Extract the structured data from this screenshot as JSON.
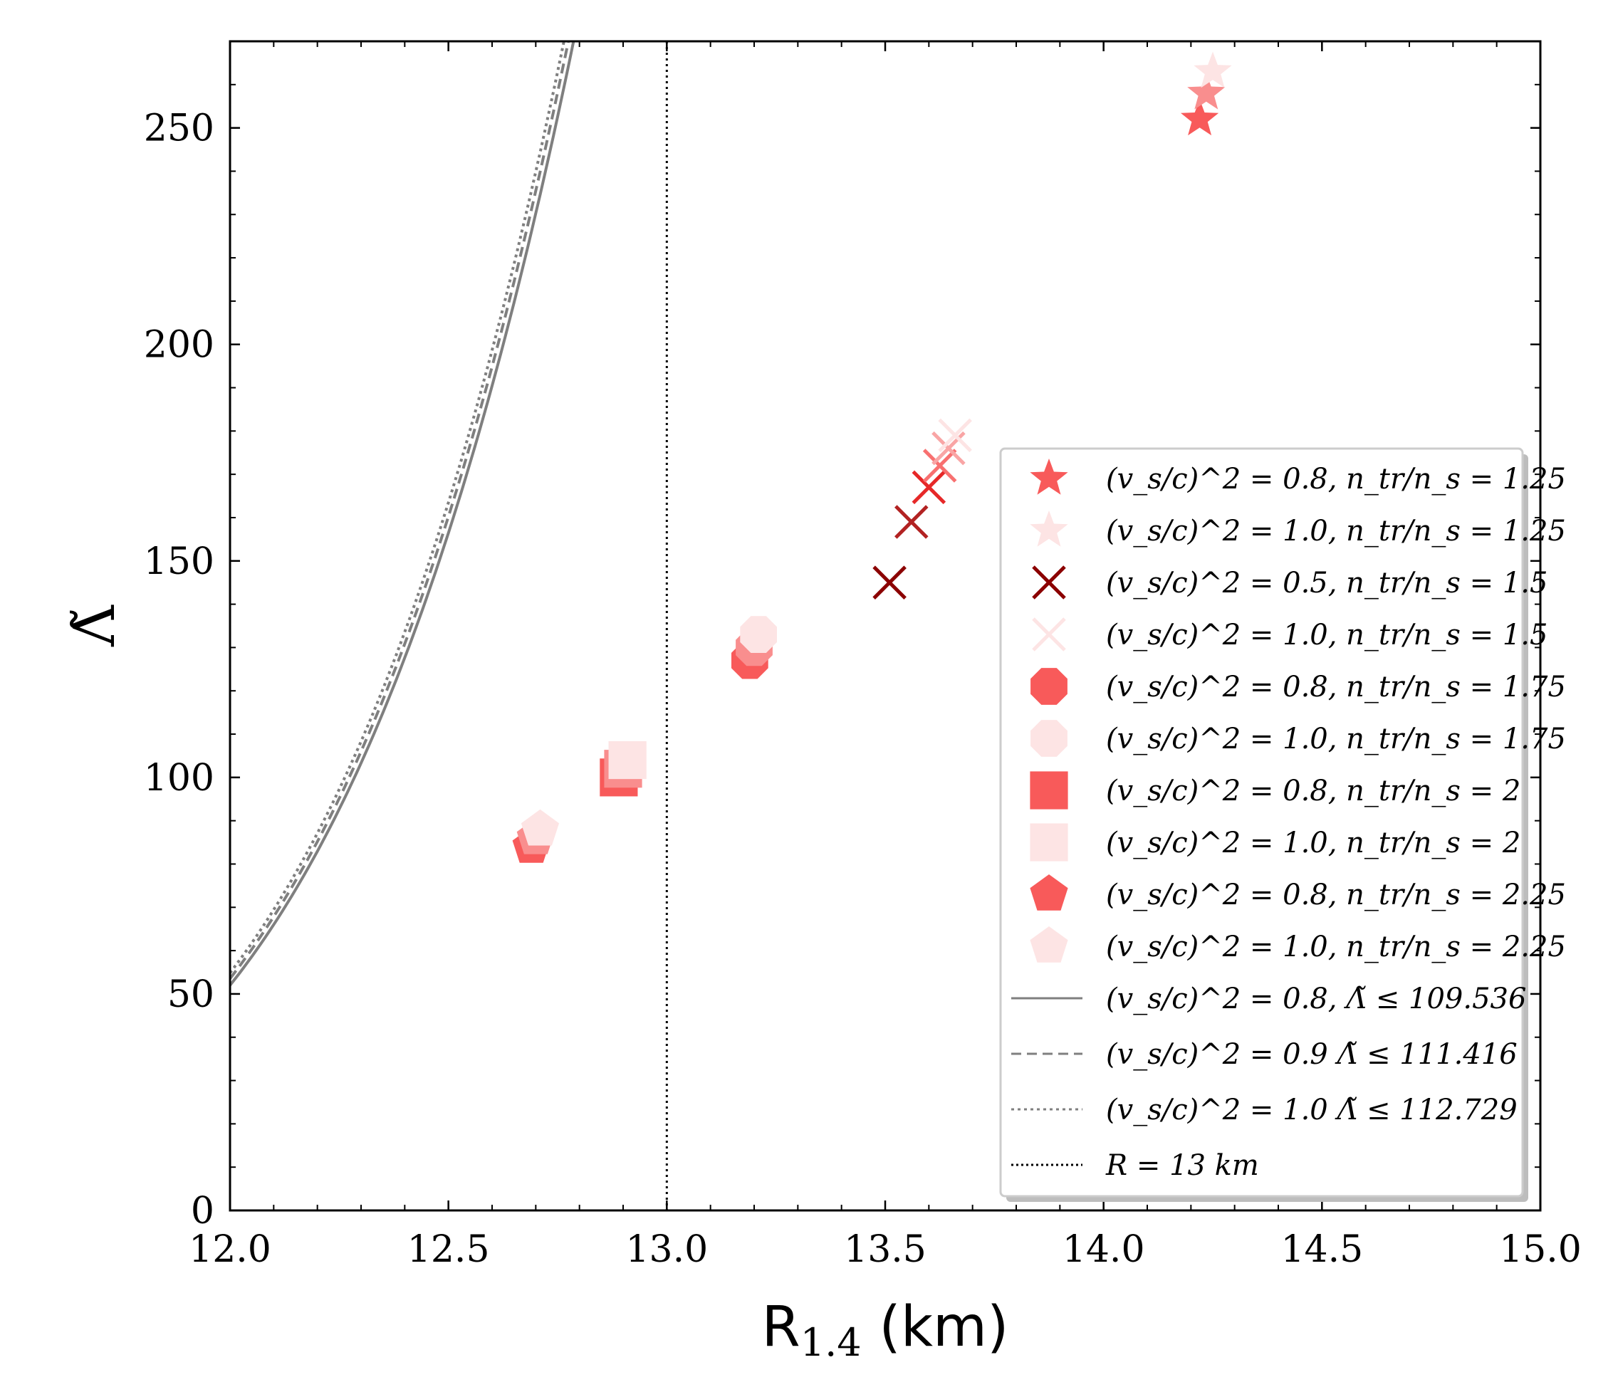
{
  "chart_data": {
    "type": "scatter",
    "xlabel": "R",
    "xlabel_sub": "1.4",
    "xlabel_unit": "(km)",
    "ylabel": "Λ̃",
    "xlim": [
      12.0,
      15.0
    ],
    "ylim": [
      0,
      270
    ],
    "x_ticks": [
      12.0,
      12.5,
      13.0,
      13.5,
      14.0,
      14.5,
      15.0
    ],
    "x_tick_labels": [
      "12.0",
      "12.5",
      "13.0",
      "13.5",
      "14.0",
      "14.5",
      "15.0"
    ],
    "y_ticks": [
      0,
      50,
      100,
      150,
      200,
      250
    ],
    "y_tick_labels": [
      "0",
      "50",
      "100",
      "150",
      "200",
      "250"
    ],
    "vline": {
      "x": 13.0,
      "label": "R = 13 km"
    },
    "curves": [
      {
        "name": "(v_s/c)^2 = 0.8,  Λ̃ ≤ 109.536",
        "style": "solid",
        "color": "#7f7f7f",
        "shift": 0.0
      },
      {
        "name": "(v_s/c)^2 = 0.9 Λ̃ ≤ 111.416",
        "style": "dashed",
        "color": "#7f7f7f",
        "shift": 0.012
      },
      {
        "name": "(v_s/c)^2 = 1.0 Λ̃ ≤ 112.729",
        "style": "dotted",
        "color": "#7f7f7f",
        "shift": 0.022
      }
    ],
    "series": [
      {
        "name": "(v_s/c)^2 = 0.8,  n_tr/n_s = 1.25",
        "marker": "star",
        "color": "#f85a5a",
        "points": [
          [
            14.22,
            252
          ]
        ]
      },
      {
        "name": "(v_s/c)^2 = 1.0,  n_tr/n_s = 1.25",
        "marker": "star",
        "color": "#fde4e4",
        "points": [
          [
            14.25,
            263
          ]
        ]
      },
      {
        "name": "(v_s/c)^2 = 0.5,  n_tr/n_s = 1.5",
        "marker": "x",
        "color": "#8b0000",
        "points": [
          [
            13.51,
            145
          ]
        ]
      },
      {
        "name": "(v_s/c)^2 = 1.0,  n_tr/n_s = 1.5",
        "marker": "x",
        "color": "#fde4e4",
        "points": [
          [
            13.66,
            179
          ]
        ]
      },
      {
        "name": "(v_s/c)^2 = 0.8,  n_tr/n_s = 1.75",
        "marker": "octagon",
        "color": "#f85a5a",
        "points": [
          [
            13.19,
            127
          ]
        ]
      },
      {
        "name": "(v_s/c)^2 = 1.0,  n_tr/n_s = 1.75",
        "marker": "octagon",
        "color": "#fde4e4",
        "points": [
          [
            13.21,
            133
          ]
        ]
      },
      {
        "name": "(v_s/c)^2 = 0.8,  n_tr/n_s = 2",
        "marker": "square",
        "color": "#f85a5a",
        "points": [
          [
            12.89,
            100
          ]
        ]
      },
      {
        "name": "(v_s/c)^2 = 1.0,  n_tr/n_s = 2",
        "marker": "square",
        "color": "#fde4e4",
        "points": [
          [
            12.91,
            104
          ]
        ]
      },
      {
        "name": "(v_s/c)^2 = 0.8,  n_tr/n_s = 2.25",
        "marker": "pentagon",
        "color": "#f85a5a",
        "points": [
          [
            12.69,
            84
          ]
        ]
      },
      {
        "name": "(v_s/c)^2 = 1.0,  n_tr/n_s = 2.25",
        "marker": "pentagon",
        "color": "#fde4e4",
        "points": [
          [
            12.71,
            88
          ]
        ]
      }
    ],
    "intermediate_points": [
      {
        "marker": "star",
        "color": "#f98e8e",
        "x": 14.235,
        "y": 258
      },
      {
        "marker": "x",
        "color": "#b22222",
        "x": 13.56,
        "y": 159
      },
      {
        "marker": "x",
        "color": "#e62828",
        "x": 13.6,
        "y": 167
      },
      {
        "marker": "x",
        "color": "#f87070",
        "x": 13.625,
        "y": 172
      },
      {
        "marker": "x",
        "color": "#f9a5a5",
        "x": 13.645,
        "y": 176
      },
      {
        "marker": "octagon",
        "color": "#f98e8e",
        "x": 13.2,
        "y": 130
      },
      {
        "marker": "square",
        "color": "#f98e8e",
        "x": 12.9,
        "y": 102
      },
      {
        "marker": "pentagon",
        "color": "#f98e8e",
        "x": 12.7,
        "y": 86
      }
    ],
    "legend": {
      "placement": "lower-right",
      "entries": [
        "(v_s/c)^2 = 0.8,  n_tr/n_s = 1.25",
        "(v_s/c)^2 = 1.0,  n_tr/n_s = 1.25",
        "(v_s/c)^2 = 0.5,  n_tr/n_s = 1.5",
        "(v_s/c)^2 = 1.0,  n_tr/n_s = 1.5",
        "(v_s/c)^2 = 0.8,  n_tr/n_s = 1.75",
        "(v_s/c)^2 = 1.0,  n_tr/n_s = 1.75",
        "(v_s/c)^2 = 0.8,  n_tr/n_s = 2",
        "(v_s/c)^2 = 1.0,  n_tr/n_s = 2",
        "(v_s/c)^2 = 0.8,  n_tr/n_s = 2.25",
        "(v_s/c)^2 = 1.0,  n_tr/n_s = 2.25",
        "(v_s/c)^2 = 0.8,  Λ̃ ≤ 109.536",
        "(v_s/c)^2 = 0.9 Λ̃ ≤ 111.416",
        "(v_s/c)^2 = 1.0 Λ̃ ≤ 112.729",
        "R = 13 km"
      ]
    }
  }
}
